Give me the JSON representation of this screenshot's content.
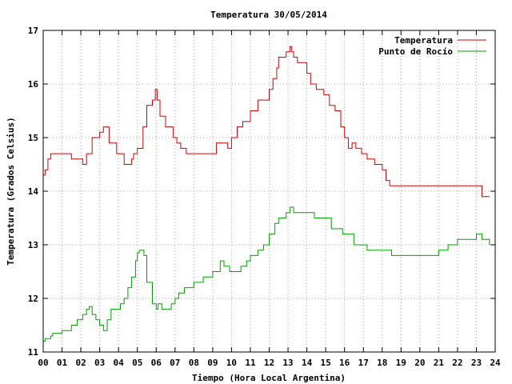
{
  "chart_data": {
    "type": "line",
    "title": "Temperatura 30/05/2014",
    "xlabel": "Tiempo (Hora Local Argentina)",
    "ylabel": "Temperatura (Grados Celsius)",
    "xlim": [
      0,
      24
    ],
    "ylim": [
      11,
      17
    ],
    "x_ticks": [
      0,
      1,
      2,
      3,
      4,
      5,
      6,
      7,
      8,
      9,
      10,
      11,
      12,
      13,
      14,
      15,
      16,
      17,
      18,
      19,
      20,
      21,
      22,
      23,
      24
    ],
    "x_tick_labels": [
      "00",
      "01",
      "02",
      "03",
      "04",
      "05",
      "06",
      "07",
      "08",
      "09",
      "10",
      "11",
      "12",
      "13",
      "14",
      "15",
      "16",
      "17",
      "18",
      "19",
      "20",
      "21",
      "22",
      "23",
      "24"
    ],
    "y_ticks": [
      11,
      12,
      13,
      14,
      15,
      16,
      17
    ],
    "y_tick_labels": [
      "11",
      "12",
      "13",
      "14",
      "15",
      "16",
      "17"
    ],
    "grid": true,
    "legend_position": "top-right",
    "series": [
      {
        "name": "Temperatura",
        "color": "#d00000",
        "x": [
          0,
          0.1,
          0.25,
          0.4,
          1.0,
          1.5,
          2.1,
          2.3,
          2.6,
          3.0,
          3.2,
          3.5,
          3.9,
          4.3,
          4.7,
          4.8,
          5.0,
          5.3,
          5.5,
          5.8,
          5.95,
          6.05,
          6.2,
          6.5,
          6.9,
          7.1,
          7.3,
          7.6,
          8.0,
          8.7,
          9.2,
          9.5,
          9.8,
          10.0,
          10.3,
          10.6,
          11.0,
          11.4,
          11.7,
          12.0,
          12.2,
          12.4,
          12.5,
          12.7,
          12.9,
          13.1,
          13.2,
          13.3,
          13.5,
          14.0,
          14.2,
          14.5,
          14.9,
          15.2,
          15.5,
          15.8,
          16.0,
          16.2,
          16.4,
          16.6,
          16.9,
          17.2,
          17.6,
          18.0,
          18.2,
          18.4,
          18.5,
          20.0,
          21.0,
          22.0,
          23.1,
          23.3,
          23.7
        ],
        "y": [
          14.3,
          14.4,
          14.6,
          14.7,
          14.7,
          14.6,
          14.5,
          14.7,
          15.0,
          15.1,
          15.2,
          14.9,
          14.7,
          14.5,
          14.6,
          14.7,
          14.8,
          15.2,
          15.6,
          15.7,
          15.9,
          15.7,
          15.4,
          15.2,
          15.0,
          14.9,
          14.8,
          14.7,
          14.7,
          14.7,
          14.9,
          14.9,
          14.8,
          15.0,
          15.2,
          15.3,
          15.5,
          15.7,
          15.7,
          15.9,
          16.1,
          16.3,
          16.5,
          16.5,
          16.6,
          16.7,
          16.6,
          16.5,
          16.4,
          16.2,
          16.0,
          15.9,
          15.8,
          15.6,
          15.5,
          15.2,
          15.0,
          14.8,
          14.9,
          14.8,
          14.7,
          14.6,
          14.5,
          14.4,
          14.2,
          14.1,
          14.1,
          14.1,
          14.1,
          14.1,
          14.1,
          13.9,
          13.9
        ]
      },
      {
        "name": "Punto de Rocío",
        "color": "#00a000",
        "x": [
          0,
          0.1,
          0.4,
          0.5,
          1.0,
          1.5,
          1.8,
          2.1,
          2.3,
          2.45,
          2.6,
          2.8,
          3.0,
          3.2,
          3.4,
          3.6,
          3.8,
          4.1,
          4.3,
          4.5,
          4.7,
          4.9,
          5.0,
          5.1,
          5.2,
          5.35,
          5.5,
          5.8,
          6.0,
          6.1,
          6.3,
          6.5,
          6.8,
          7.0,
          7.2,
          7.5,
          8.0,
          8.5,
          9.0,
          9.4,
          9.6,
          9.9,
          10.1,
          10.5,
          10.8,
          11.0,
          11.4,
          11.7,
          12.0,
          12.3,
          12.5,
          12.7,
          12.9,
          13.1,
          13.3,
          13.6,
          13.9,
          14.1,
          14.4,
          14.7,
          15.0,
          15.3,
          15.6,
          15.9,
          16.2,
          16.5,
          16.9,
          17.2,
          17.6,
          18.0,
          18.5,
          19.5,
          20.0,
          20.6,
          21.0,
          21.5,
          22.0,
          22.6,
          23.0,
          23.3,
          23.5,
          23.7
        ],
        "y": [
          11.2,
          11.25,
          11.3,
          11.35,
          11.4,
          11.5,
          11.6,
          11.7,
          11.8,
          11.85,
          11.7,
          11.6,
          11.5,
          11.4,
          11.6,
          11.8,
          11.8,
          11.9,
          12.0,
          12.2,
          12.4,
          12.7,
          12.85,
          12.9,
          12.9,
          12.8,
          12.3,
          11.9,
          11.8,
          11.9,
          11.8,
          11.8,
          11.9,
          12.0,
          12.1,
          12.2,
          12.3,
          12.4,
          12.5,
          12.7,
          12.6,
          12.5,
          12.5,
          12.6,
          12.7,
          12.8,
          12.9,
          13.0,
          13.2,
          13.4,
          13.5,
          13.5,
          13.6,
          13.7,
          13.6,
          13.6,
          13.6,
          13.6,
          13.5,
          13.5,
          13.5,
          13.3,
          13.3,
          13.2,
          13.2,
          13.0,
          13.0,
          12.9,
          12.9,
          12.9,
          12.8,
          12.8,
          12.8,
          12.8,
          12.9,
          13.0,
          13.1,
          13.1,
          13.2,
          13.1,
          13.1,
          13.0
        ]
      }
    ]
  }
}
